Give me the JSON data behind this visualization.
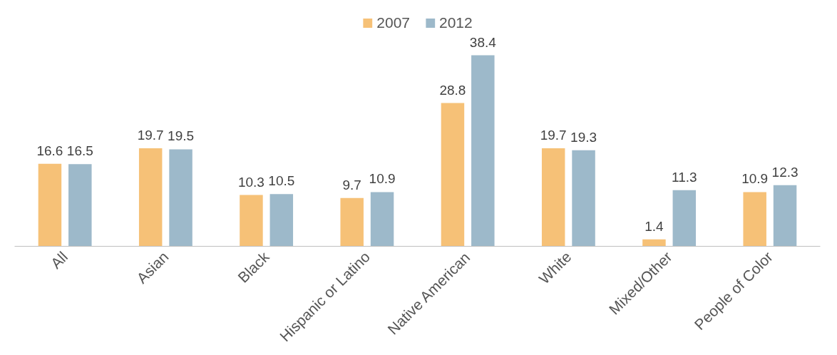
{
  "chart_data": {
    "type": "bar",
    "categories": [
      "All",
      "Asian",
      "Black",
      "Hispanic or Latino",
      "Native American",
      "White",
      "Mixed/Other",
      "People of Color"
    ],
    "series": [
      {
        "name": "2007",
        "color": "#f6c177",
        "values": [
          16.6,
          19.7,
          10.3,
          9.7,
          28.8,
          19.7,
          1.4,
          10.9
        ]
      },
      {
        "name": "2012",
        "color": "#9db9ca",
        "values": [
          16.5,
          19.5,
          10.5,
          10.9,
          38.4,
          19.3,
          11.3,
          12.3
        ]
      }
    ],
    "tick_labels": "x",
    "data_labels": true,
    "legend": "top",
    "grid": false
  }
}
